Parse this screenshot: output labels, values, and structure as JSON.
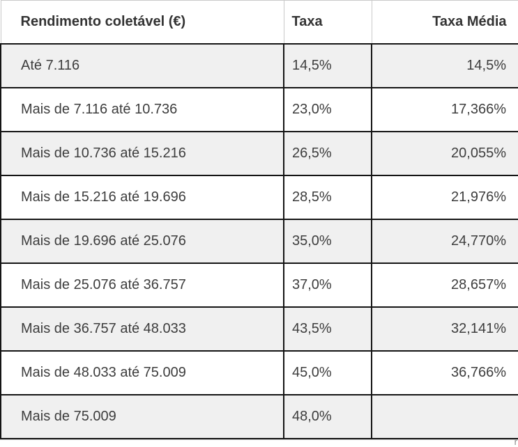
{
  "chart_data": {
    "type": "table",
    "columns": [
      "Rendimento coletável (€)",
      "Taxa",
      "Taxa Média"
    ],
    "rows": [
      [
        "Até 7.116",
        "14,5%",
        "14,5%"
      ],
      [
        "Mais de 7.116 até 10.736",
        "23,0%",
        "17,366%"
      ],
      [
        "Mais de 10.736 até 15.216",
        "26,5%",
        "20,055%"
      ],
      [
        "Mais de 15.216 até 19.696",
        "28,5%",
        "21,976%"
      ],
      [
        "Mais de 19.696 até 25.076",
        "35,0%",
        "24,770%"
      ],
      [
        "Mais de 25.076 até 36.757",
        "37,0%",
        "28,657%"
      ],
      [
        "Mais de 36.757 até 48.033",
        "43,5%",
        "32,141%"
      ],
      [
        "Mais de 48.033 até 75.009",
        "45,0%",
        "36,766%"
      ],
      [
        "Mais de 75.009",
        "48,0%",
        ""
      ]
    ],
    "taxa_percent": [
      14.5,
      23.0,
      26.5,
      28.5,
      35.0,
      37.0,
      43.5,
      45.0,
      48.0
    ],
    "taxa_media_percent": [
      14.5,
      17.366,
      20.055,
      21.976,
      24.77,
      28.657,
      32.141,
      36.766,
      null
    ],
    "layout": {
      "column_align": [
        "left",
        "left",
        "right"
      ],
      "alternating_row_background": true,
      "first_data_row_shaded": true
    }
  },
  "artifact": {
    "clipped_text": "r"
  },
  "colors": {
    "row_shaded_bg": "#f0f0f0",
    "row_plain_bg": "#ffffff",
    "body_border": "#141414",
    "header_border": "#c9c9c9",
    "header_text": "#333333",
    "body_text": "#3d3d3d",
    "bottom_edge_line": "#cccccc"
  }
}
